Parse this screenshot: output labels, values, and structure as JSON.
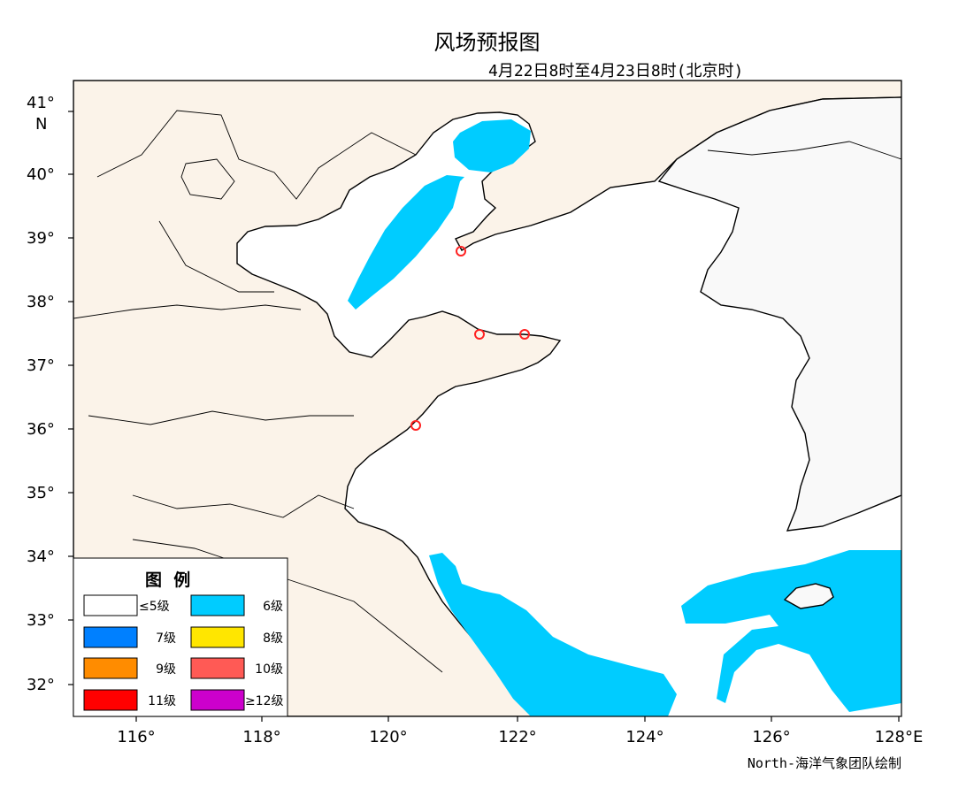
{
  "title": "风场预报图",
  "subtitle": "4月22日8时至4月23日8时(北京时)",
  "credit": "North-海洋气象团队绘制",
  "colors": {
    "land_china": "#fbf3e9",
    "land_korea": "#f9f9f9",
    "sea": "#ffffff",
    "level6": "#00ccff",
    "marker": "#ff2222"
  },
  "axes": {
    "lon_labels": [
      "116°",
      "118°",
      "120°",
      "122°",
      "124°",
      "126°",
      "128°E"
    ],
    "lat_labels": [
      "32°",
      "33°",
      "34°",
      "35°",
      "36°",
      "37°",
      "38°",
      "39°",
      "40°",
      "41°"
    ],
    "lat_unit": "N"
  },
  "legend": {
    "title": "图  例",
    "items": [
      {
        "label": "≤5级",
        "color": "#ffffff"
      },
      {
        "label": "6级",
        "color": "#00ccff"
      },
      {
        "label": "7级",
        "color": "#0080ff"
      },
      {
        "label": "8级",
        "color": "#ffe600"
      },
      {
        "label": "9级",
        "color": "#ff8c00"
      },
      {
        "label": "10级",
        "color": "#ff5a55"
      },
      {
        "label": "11级",
        "color": "#ff0000"
      },
      {
        "label": "≥12级",
        "color": "#cc00cc"
      }
    ]
  },
  "stations": [
    "dalian",
    "penglai",
    "weihai",
    "qingdao"
  ]
}
